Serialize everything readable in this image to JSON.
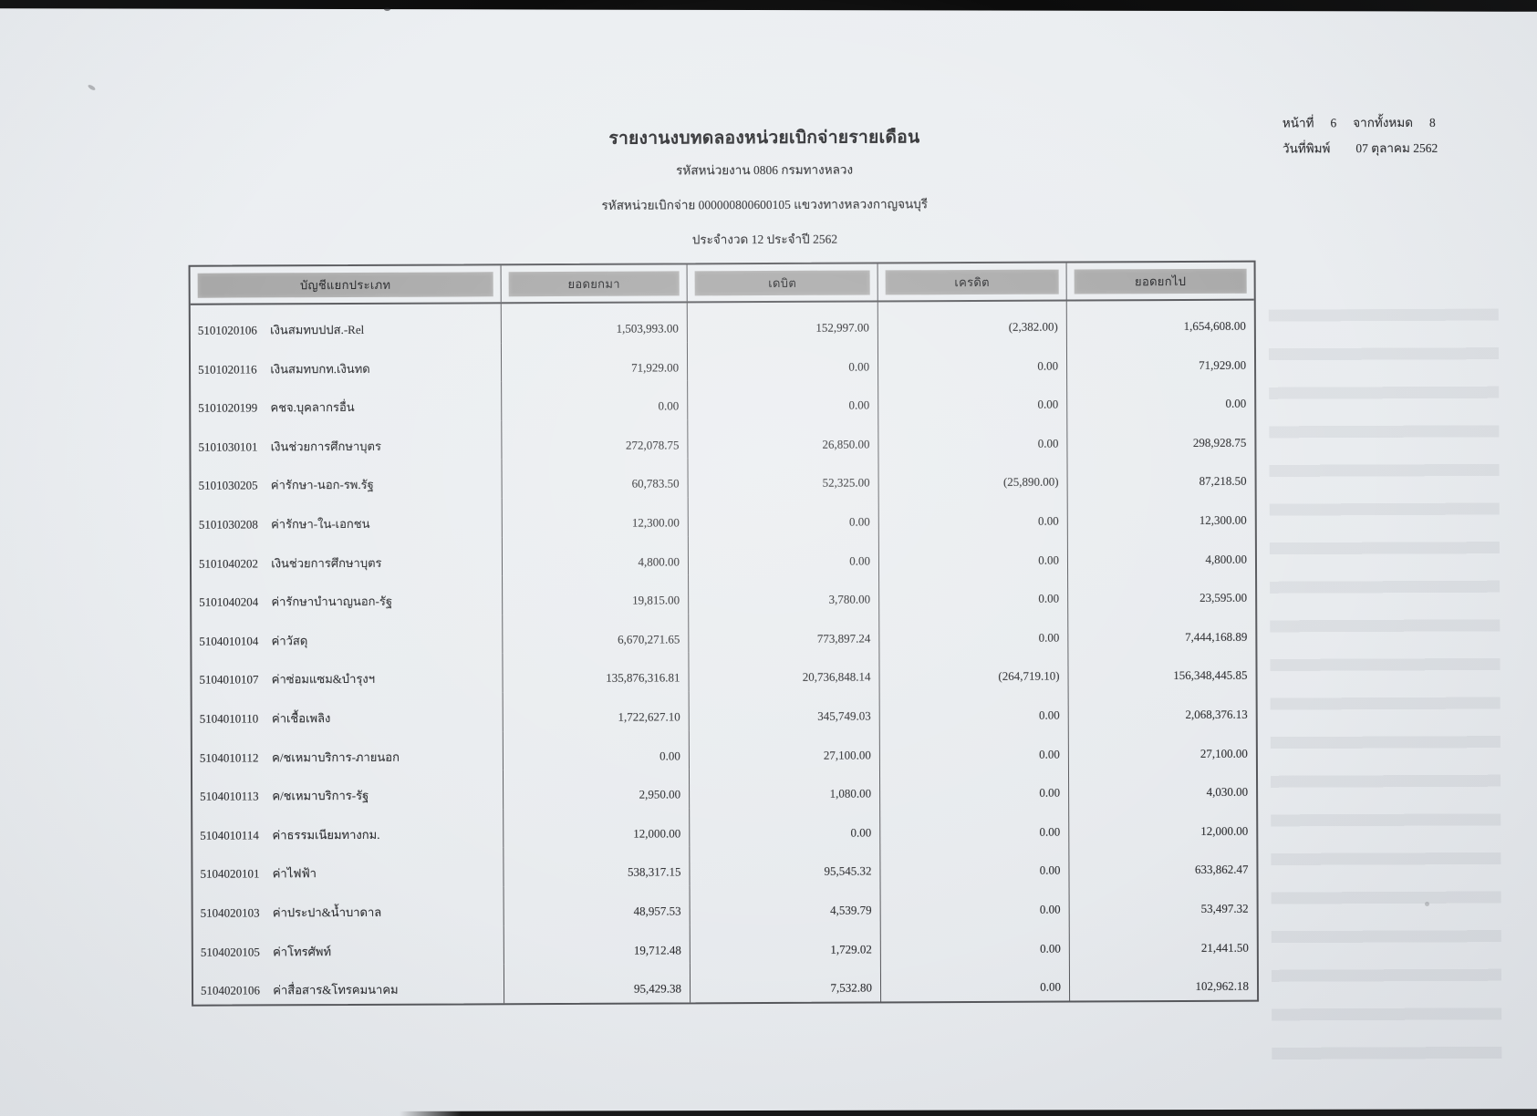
{
  "colors": {
    "paper": "#eaedf0",
    "ink": "#2f3033",
    "bar": "#a8a8a8",
    "border": "#56575b",
    "edge": "#0c0c0c"
  },
  "header": {
    "title": "รายงานงบทดลองหน่วยเบิกจ่ายรายเดือน",
    "agency_line": "รหัสหน่วยงาน 0806 กรมทางหลวง",
    "unit_line": "รหัสหน่วยเบิกจ่าย 000000800600105 แขวงทางหลวงกาญจนบุรี",
    "period_line": "ประจำงวด 12 ประจำปี 2562"
  },
  "page_info": {
    "page_label": "หน้าที่",
    "page_number": "6",
    "total_label": "จากทั้งหมด",
    "total_pages": "8",
    "print_date_label": "วันที่พิมพ์",
    "print_date": "07 ตุลาคม 2562"
  },
  "table": {
    "columns": [
      "บัญชีแยกประเภท",
      "ยอดยกมา",
      "เดบิต",
      "เครดิต",
      "ยอดยกไป"
    ],
    "rows": [
      {
        "code": "5101020106",
        "name": "เงินสมทบปปส.-Rel",
        "opening": "1,503,993.00",
        "debit": "152,997.00",
        "credit": "(2,382.00)",
        "closing": "1,654,608.00"
      },
      {
        "code": "5101020116",
        "name": "เงินสมทบกท.เงินทด",
        "opening": "71,929.00",
        "debit": "0.00",
        "credit": "0.00",
        "closing": "71,929.00"
      },
      {
        "code": "5101020199",
        "name": "คชจ.บุคลากรอื่น",
        "opening": "0.00",
        "debit": "0.00",
        "credit": "0.00",
        "closing": "0.00"
      },
      {
        "code": "5101030101",
        "name": "เงินช่วยการศึกษาบุตร",
        "opening": "272,078.75",
        "debit": "26,850.00",
        "credit": "0.00",
        "closing": "298,928.75"
      },
      {
        "code": "5101030205",
        "name": "ค่ารักษา-นอก-รพ.รัฐ",
        "opening": "60,783.50",
        "debit": "52,325.00",
        "credit": "(25,890.00)",
        "closing": "87,218.50"
      },
      {
        "code": "5101030208",
        "name": "ค่ารักษา-ใน-เอกชน",
        "opening": "12,300.00",
        "debit": "0.00",
        "credit": "0.00",
        "closing": "12,300.00"
      },
      {
        "code": "5101040202",
        "name": "เงินช่วยการศึกษาบุตร",
        "opening": "4,800.00",
        "debit": "0.00",
        "credit": "0.00",
        "closing": "4,800.00"
      },
      {
        "code": "5101040204",
        "name": "ค่ารักษาบำนาญนอก-รัฐ",
        "opening": "19,815.00",
        "debit": "3,780.00",
        "credit": "0.00",
        "closing": "23,595.00"
      },
      {
        "code": "5104010104",
        "name": "ค่าวัสดุ",
        "opening": "6,670,271.65",
        "debit": "773,897.24",
        "credit": "0.00",
        "closing": "7,444,168.89"
      },
      {
        "code": "5104010107",
        "name": "ค่าซ่อมแซม&บำรุงฯ",
        "opening": "135,876,316.81",
        "debit": "20,736,848.14",
        "credit": "(264,719.10)",
        "closing": "156,348,445.85"
      },
      {
        "code": "5104010110",
        "name": "ค่าเชื้อเพลิง",
        "opening": "1,722,627.10",
        "debit": "345,749.03",
        "credit": "0.00",
        "closing": "2,068,376.13"
      },
      {
        "code": "5104010112",
        "name": "ค/ชเหมาบริการ-ภายนอก",
        "opening": "0.00",
        "debit": "27,100.00",
        "credit": "0.00",
        "closing": "27,100.00"
      },
      {
        "code": "5104010113",
        "name": "ค/ชเหมาบริการ-รัฐ",
        "opening": "2,950.00",
        "debit": "1,080.00",
        "credit": "0.00",
        "closing": "4,030.00"
      },
      {
        "code": "5104010114",
        "name": "ค่าธรรมเนียมทางกม.",
        "opening": "12,000.00",
        "debit": "0.00",
        "credit": "0.00",
        "closing": "12,000.00"
      },
      {
        "code": "5104020101",
        "name": "ค่าไฟฟ้า",
        "opening": "538,317.15",
        "debit": "95,545.32",
        "credit": "0.00",
        "closing": "633,862.47"
      },
      {
        "code": "5104020103",
        "name": "ค่าประปา&น้ำบาดาล",
        "opening": "48,957.53",
        "debit": "4,539.79",
        "credit": "0.00",
        "closing": "53,497.32"
      },
      {
        "code": "5104020105",
        "name": "ค่าโทรศัพท์",
        "opening": "19,712.48",
        "debit": "1,729.02",
        "credit": "0.00",
        "closing": "21,441.50"
      },
      {
        "code": "5104020106",
        "name": "ค่าสื่อสาร&โทรคมนาคม",
        "opening": "95,429.38",
        "debit": "7,532.80",
        "credit": "0.00",
        "closing": "102,962.18"
      }
    ]
  }
}
